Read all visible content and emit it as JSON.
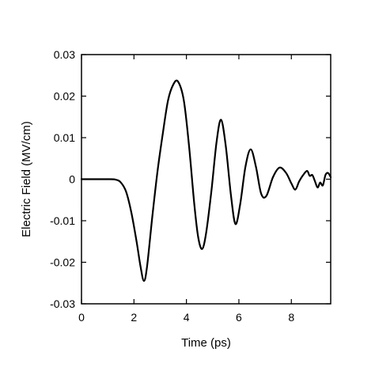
{
  "chart_data": {
    "type": "line",
    "title": "",
    "xlabel": "Time (ps)",
    "ylabel": "Electric Field (MV/cm)",
    "xlim": [
      0,
      9.5
    ],
    "ylim": [
      -0.03,
      0.03
    ],
    "xticks": [
      0,
      2,
      4,
      6,
      8
    ],
    "xtick_labels": [
      "0",
      "2",
      "4",
      "6",
      "8"
    ],
    "yticks": [
      -0.03,
      -0.02,
      -0.01,
      0,
      0.01,
      0.02,
      0.03
    ],
    "ytick_labels": [
      "-0.03",
      "-0.02",
      "-0.01",
      "0",
      "0.01",
      "0.02",
      "0.03"
    ],
    "grid": false,
    "line_color": "#000000",
    "series": [
      {
        "x": [
          0,
          0.5,
          1.0,
          1.3,
          1.5,
          1.7,
          1.9,
          2.1,
          2.25,
          2.38,
          2.5,
          2.7,
          2.9,
          3.1,
          3.3,
          3.5,
          3.68,
          3.9,
          4.1,
          4.3,
          4.45,
          4.6,
          4.75,
          4.95,
          5.15,
          5.32,
          5.5,
          5.7,
          5.87,
          6.05,
          6.25,
          6.45,
          6.65,
          6.85,
          7.05,
          7.3,
          7.55,
          7.8,
          8.0,
          8.15,
          8.3,
          8.45,
          8.6,
          8.7,
          8.8,
          8.9,
          9.0,
          9.1,
          9.2,
          9.3,
          9.4,
          9.5
        ],
        "y": [
          0,
          0,
          0,
          -0.0001,
          -0.0008,
          -0.003,
          -0.008,
          -0.015,
          -0.021,
          -0.0245,
          -0.021,
          -0.009,
          0.002,
          0.011,
          0.019,
          0.0228,
          0.0235,
          0.019,
          0.008,
          -0.006,
          -0.014,
          -0.0168,
          -0.013,
          -0.003,
          0.009,
          0.0143,
          0.008,
          -0.004,
          -0.0108,
          -0.006,
          0.003,
          0.0072,
          0.003,
          -0.0035,
          -0.004,
          0.0005,
          0.0028,
          0.0015,
          -0.001,
          -0.0025,
          -0.0005,
          0.001,
          0.002,
          0.0008,
          0.001,
          -0.0005,
          -0.002,
          -0.0008,
          -0.0015,
          0.001,
          0.0015,
          0.0005
        ]
      }
    ]
  }
}
